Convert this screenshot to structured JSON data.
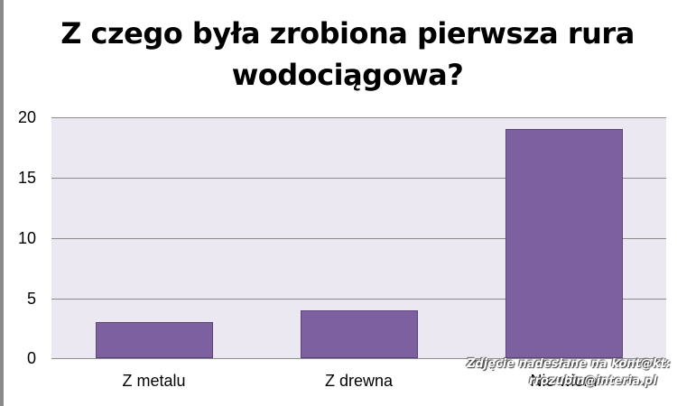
{
  "title_line1": "Z czego była zrobiona pierwsza rura",
  "title_line2": "wodociągowa?",
  "chart_data": {
    "type": "bar",
    "title": "Z czego była zrobiona pierwsza rura wodociągowa?",
    "categories": [
      "Z metalu",
      "Z drewna",
      "Nie wiem"
    ],
    "values": [
      3,
      4,
      19
    ],
    "xlabel": "",
    "ylabel": "",
    "ylim": [
      0,
      20
    ],
    "yticks": [
      "0",
      "5",
      "10",
      "15",
      "20"
    ],
    "grid": true,
    "legend": null,
    "bar_color": "#7d60a0",
    "plot_background": "#ebe8f1"
  },
  "watermark": {
    "line1": "Zdjęcie nadesłane na kont@kt:",
    "line2": "rrozubin@interia.pl"
  }
}
